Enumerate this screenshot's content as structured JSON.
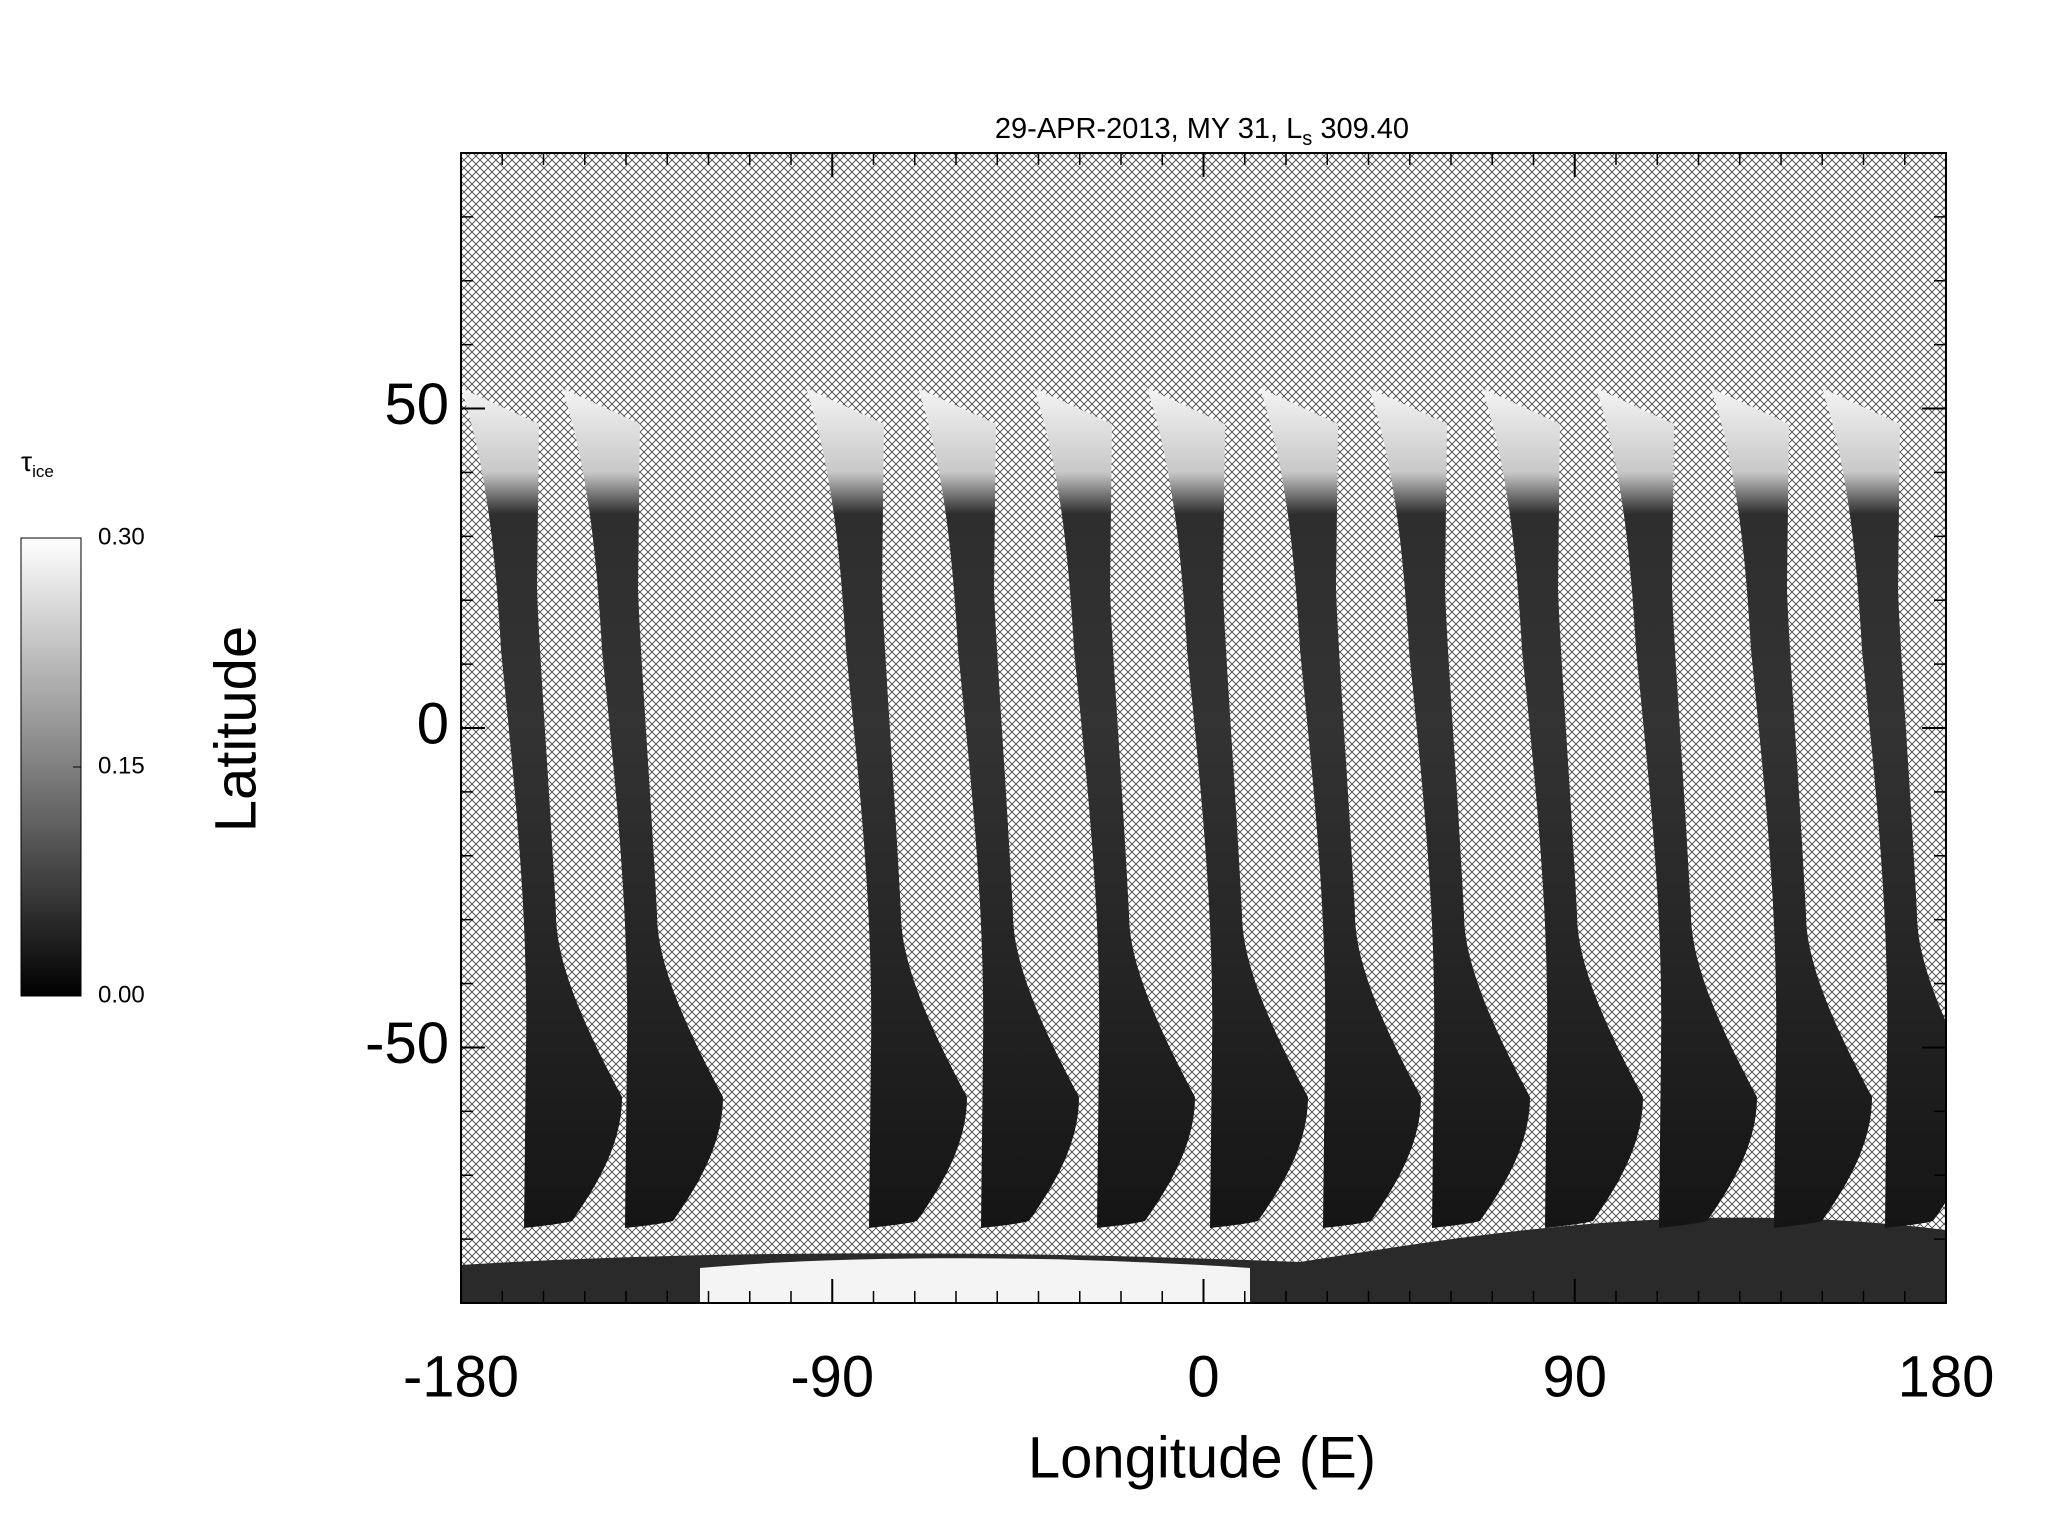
{
  "chart_data": {
    "type": "map",
    "title": {
      "text": "29-APR-2013, MY 31,  L",
      "subscript": "s",
      "rest": " 309.40"
    },
    "xlabel": "Longitude (E)",
    "ylabel": "Latitude",
    "xlim": [
      -180,
      180
    ],
    "xticks": [
      -180,
      -90,
      0,
      90,
      180
    ],
    "ylim": [
      -90,
      90
    ],
    "yticks": [
      -50,
      0,
      50
    ],
    "colorbar": {
      "label": "τ",
      "label_sub": "ice",
      "lim": [
        0,
        0.3
      ],
      "ticks": [
        {
          "value": 0,
          "label": "0.00"
        },
        {
          "value": 0.15,
          "label": "0.15"
        },
        {
          "value": 0.3,
          "label": "0.30"
        }
      ]
    }
  }
}
